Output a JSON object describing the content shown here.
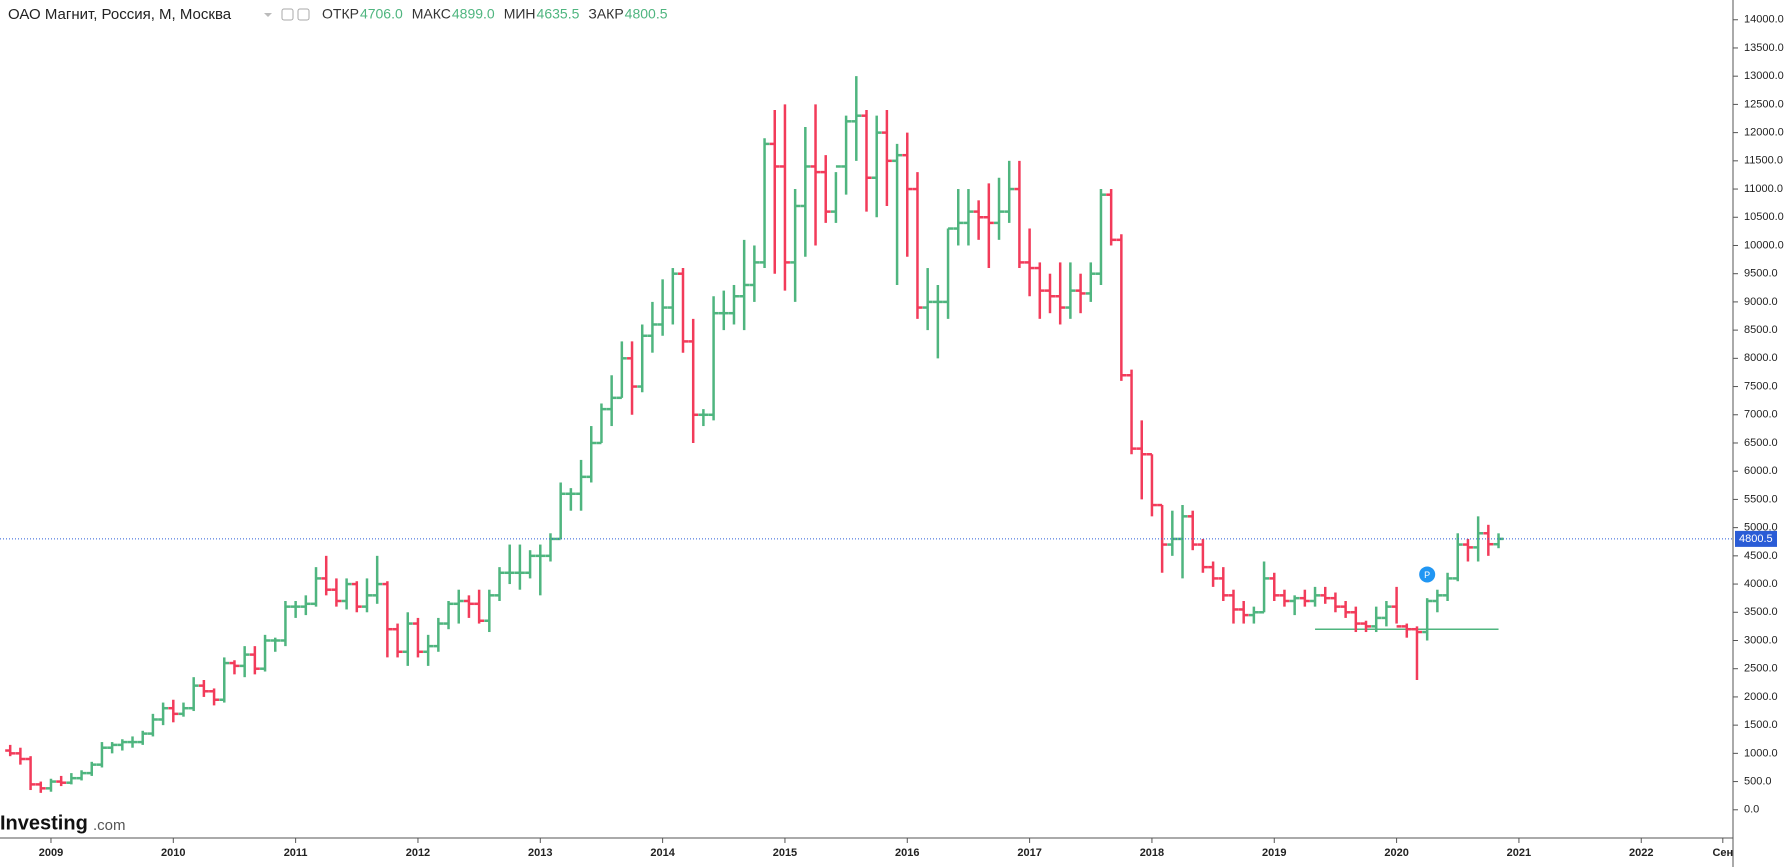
{
  "chart_data": {
    "type": "ohlc",
    "title": "ОАО Магнит, Россия, М, Москва",
    "ohlc_header": [
      {
        "label": "ОТКР",
        "value": "4706.0"
      },
      {
        "label": "МАКС",
        "value": "4899.0"
      },
      {
        "label": "МИН",
        "value": "4635.5"
      },
      {
        "label": "ЗАКР",
        "value": "4800.5"
      }
    ],
    "logo": {
      "name": "Investing",
      "suffix": ".com"
    },
    "up_color": "#4fb57f",
    "down_color": "#f23b5a",
    "x": [
      "2008-09",
      "2008-10",
      "2008-11",
      "2008-12",
      "2009-01",
      "2009-02",
      "2009-03",
      "2009-04",
      "2009-05",
      "2009-06",
      "2009-07",
      "2009-08",
      "2009-09",
      "2009-10",
      "2009-11",
      "2009-12",
      "2010-01",
      "2010-02",
      "2010-03",
      "2010-04",
      "2010-05",
      "2010-06",
      "2010-07",
      "2010-08",
      "2010-09",
      "2010-10",
      "2010-11",
      "2010-12",
      "2011-01",
      "2011-02",
      "2011-03",
      "2011-04",
      "2011-05",
      "2011-06",
      "2011-07",
      "2011-08",
      "2011-09",
      "2011-10",
      "2011-11",
      "2011-12",
      "2012-01",
      "2012-02",
      "2012-03",
      "2012-04",
      "2012-05",
      "2012-06",
      "2012-07",
      "2012-08",
      "2012-09",
      "2012-10",
      "2012-11",
      "2012-12",
      "2013-01",
      "2013-02",
      "2013-03",
      "2013-04",
      "2013-05",
      "2013-06",
      "2013-07",
      "2013-08",
      "2013-09",
      "2013-10",
      "2013-11",
      "2013-12",
      "2014-01",
      "2014-02",
      "2014-03",
      "2014-04",
      "2014-05",
      "2014-06",
      "2014-07",
      "2014-08",
      "2014-09",
      "2014-10",
      "2014-11",
      "2014-12",
      "2015-01",
      "2015-02",
      "2015-03",
      "2015-04",
      "2015-05",
      "2015-06",
      "2015-07",
      "2015-08",
      "2015-09",
      "2015-10",
      "2015-11",
      "2015-12",
      "2016-01",
      "2016-02",
      "2016-03",
      "2016-04",
      "2016-05",
      "2016-06",
      "2016-07",
      "2016-08",
      "2016-09",
      "2016-10",
      "2016-11",
      "2016-12",
      "2017-01",
      "2017-02",
      "2017-03",
      "2017-04",
      "2017-05",
      "2017-06",
      "2017-07",
      "2017-08",
      "2017-09",
      "2017-10",
      "2017-11",
      "2017-12",
      "2018-01",
      "2018-02",
      "2018-03",
      "2018-04",
      "2018-05",
      "2018-06",
      "2018-07",
      "2018-08",
      "2018-09",
      "2018-10",
      "2018-11",
      "2018-12",
      "2019-01",
      "2019-02",
      "2019-03",
      "2019-04",
      "2019-05",
      "2019-06",
      "2019-07",
      "2019-08",
      "2019-09",
      "2019-10",
      "2019-11",
      "2019-12",
      "2020-01",
      "2020-02",
      "2020-03",
      "2020-04",
      "2020-05",
      "2020-06",
      "2020-07",
      "2020-08",
      "2020-09",
      "2020-10",
      "2020-11"
    ],
    "open": [
      1050,
      1000,
      900,
      450,
      380,
      500,
      480,
      560,
      650,
      800,
      1100,
      1150,
      1200,
      1200,
      1350,
      1600,
      1800,
      1700,
      1800,
      2200,
      2100,
      1950,
      2600,
      2550,
      2750,
      2500,
      3000,
      3000,
      3600,
      3600,
      3650,
      4100,
      3900,
      3700,
      4000,
      3600,
      3800,
      4000,
      3200,
      2800,
      3300,
      2800,
      2900,
      3300,
      3650,
      3700,
      3650,
      3350,
      3800,
      4200,
      4200,
      4200,
      4500,
      4500,
      4800,
      5600,
      5600,
      5900,
      6500,
      7100,
      7300,
      8000,
      7500,
      8400,
      8600,
      8900,
      9500,
      8300,
      7000,
      7000,
      8800,
      8800,
      9100,
      9300,
      9700,
      11800,
      11400,
      9700,
      10700,
      11400,
      11300,
      10600,
      11400,
      12200,
      12300,
      11200,
      12000,
      11500,
      11600,
      11000,
      8900,
      9000,
      9000,
      10300,
      10400,
      10600,
      10500,
      10400,
      10600,
      11000,
      9700,
      9600,
      9200,
      9100,
      8900,
      9200,
      9150,
      9500,
      10900,
      10100,
      7700,
      6400,
      6300,
      5400,
      4700,
      4800,
      5200,
      4700,
      4300,
      4100,
      3800,
      3550,
      3450,
      3500,
      4100,
      3800,
      3700,
      3750,
      3700,
      3800,
      3750,
      3600,
      3500,
      3300,
      3250,
      3400,
      3600,
      3250,
      3200,
      3150,
      3700,
      3800,
      4100,
      4700,
      4650,
      4900,
      4706
    ],
    "high": [
      1150,
      1100,
      950,
      500,
      550,
      600,
      650,
      700,
      850,
      1200,
      1200,
      1250,
      1300,
      1400,
      1700,
      1900,
      1950,
      1900,
      2350,
      2300,
      2150,
      2700,
      2650,
      2900,
      2900,
      3100,
      3050,
      3700,
      3700,
      3800,
      4300,
      4500,
      4100,
      4100,
      4050,
      4100,
      4500,
      4050,
      3300,
      3500,
      3400,
      3100,
      3400,
      3700,
      3900,
      3800,
      3900,
      3900,
      4300,
      4700,
      4700,
      4600,
      4700,
      4900,
      5800,
      5700,
      6200,
      6800,
      7200,
      7700,
      8300,
      8300,
      8600,
      9000,
      9400,
      9600,
      9600,
      8700,
      7100,
      9100,
      9200,
      9300,
      10100,
      10000,
      11900,
      12400,
      12500,
      11000,
      12100,
      12500,
      11600,
      11300,
      12300,
      13000,
      12400,
      12300,
      12400,
      11800,
      12000,
      11300,
      9600,
      9300,
      10300,
      11000,
      11000,
      10800,
      11100,
      11200,
      11500,
      11500,
      10300,
      9700,
      9500,
      9700,
      9700,
      9500,
      9700,
      11000,
      11000,
      10200,
      7800,
      6900,
      6300,
      5400,
      5300,
      5400,
      5300,
      4800,
      4400,
      4300,
      3900,
      3700,
      3600,
      4400,
      4200,
      3900,
      3800,
      3900,
      3950,
      3950,
      3850,
      3700,
      3600,
      3350,
      3600,
      3700,
      3950,
      3300,
      3250,
      3750,
      3900,
      4200,
      4900,
      4800,
      5200,
      5050,
      4899
    ],
    "low": [
      950,
      800,
      350,
      300,
      320,
      420,
      450,
      520,
      600,
      750,
      1000,
      1050,
      1100,
      1150,
      1300,
      1500,
      1550,
      1650,
      1750,
      2000,
      1850,
      1900,
      2400,
      2350,
      2400,
      2450,
      2800,
      2900,
      3400,
      3450,
      3600,
      3800,
      3600,
      3550,
      3500,
      3500,
      3650,
      2700,
      2700,
      2550,
      2700,
      2550,
      2800,
      3200,
      3300,
      3400,
      3300,
      3150,
      3700,
      4000,
      3900,
      4100,
      3800,
      4400,
      4800,
      5300,
      5300,
      5800,
      6500,
      6800,
      7300,
      7000,
      7400,
      8100,
      8400,
      8600,
      8100,
      6500,
      6800,
      6900,
      8500,
      8600,
      8500,
      9000,
      9600,
      9500,
      9200,
      9000,
      9800,
      10000,
      10400,
      10400,
      10900,
      11500,
      10600,
      10500,
      10700,
      9300,
      9800,
      8700,
      8500,
      8000,
      8700,
      10000,
      10000,
      10100,
      9600,
      10100,
      10400,
      9600,
      9100,
      8700,
      8800,
      8600,
      8700,
      8800,
      9000,
      9300,
      10000,
      7600,
      6300,
      5500,
      5200,
      4200,
      4500,
      4100,
      4600,
      4200,
      3950,
      3700,
      3300,
      3300,
      3300,
      3500,
      3700,
      3600,
      3450,
      3600,
      3600,
      3650,
      3500,
      3400,
      3150,
      3150,
      3150,
      3250,
      3300,
      3050,
      2300,
      3000,
      3500,
      3700,
      4050,
      4400,
      4400,
      4500,
      4635.5
    ],
    "close": [
      1000,
      900,
      450,
      380,
      500,
      480,
      560,
      650,
      800,
      1100,
      1150,
      1200,
      1200,
      1350,
      1600,
      1800,
      1700,
      1800,
      2200,
      2100,
      1950,
      2600,
      2550,
      2750,
      2500,
      3000,
      3000,
      3600,
      3600,
      3650,
      4100,
      3900,
      3700,
      4000,
      3600,
      3800,
      4000,
      3200,
      2800,
      3300,
      2800,
      2900,
      3300,
      3650,
      3700,
      3650,
      3350,
      3800,
      4200,
      4200,
      4200,
      4500,
      4500,
      4800,
      5600,
      5600,
      5900,
      6500,
      7100,
      7300,
      8000,
      7500,
      8400,
      8600,
      8900,
      9500,
      8300,
      7000,
      7000,
      8800,
      8800,
      9100,
      9300,
      9700,
      11800,
      11400,
      9700,
      10700,
      11400,
      11300,
      10600,
      11400,
      12200,
      12300,
      11200,
      12000,
      11500,
      11600,
      11000,
      8900,
      9000,
      9000,
      10300,
      10400,
      10600,
      10500,
      10400,
      10600,
      11000,
      9700,
      9600,
      9200,
      9100,
      8900,
      9200,
      9150,
      9500,
      10900,
      10100,
      7700,
      6400,
      6300,
      5400,
      4700,
      4800,
      5200,
      4700,
      4300,
      4100,
      3800,
      3550,
      3450,
      3500,
      4100,
      3800,
      3700,
      3750,
      3700,
      3800,
      3750,
      3600,
      3500,
      3300,
      3250,
      3400,
      3600,
      3250,
      3200,
      3150,
      3700,
      3800,
      4100,
      4700,
      4650,
      4900,
      4706,
      4800.5
    ],
    "xlim": [
      "2008-08",
      "2022-10"
    ],
    "xticks": [
      {
        "value": "2009-01",
        "label": "2009"
      },
      {
        "value": "2010-01",
        "label": "2010"
      },
      {
        "value": "2011-01",
        "label": "2011"
      },
      {
        "value": "2012-01",
        "label": "2012"
      },
      {
        "value": "2013-01",
        "label": "2013"
      },
      {
        "value": "2014-01",
        "label": "2014"
      },
      {
        "value": "2015-01",
        "label": "2015"
      },
      {
        "value": "2016-01",
        "label": "2016"
      },
      {
        "value": "2017-01",
        "label": "2017"
      },
      {
        "value": "2018-01",
        "label": "2018"
      },
      {
        "value": "2019-01",
        "label": "2019"
      },
      {
        "value": "2020-01",
        "label": "2020"
      },
      {
        "value": "2021-01",
        "label": "2021"
      },
      {
        "value": "2022-01",
        "label": "2022"
      },
      {
        "value": "2022-09",
        "label": "Сен"
      }
    ],
    "ylim": [
      -500,
      14350
    ],
    "yticks": [
      {
        "value": 0,
        "label": "0.0"
      },
      {
        "value": 500,
        "label": "500.0"
      },
      {
        "value": 1000,
        "label": "1000.0"
      },
      {
        "value": 1500,
        "label": "1500.0"
      },
      {
        "value": 2000,
        "label": "2000.0"
      },
      {
        "value": 2500,
        "label": "2500.0"
      },
      {
        "value": 3000,
        "label": "3000.0"
      },
      {
        "value": 3500,
        "label": "3500.0"
      },
      {
        "value": 4000,
        "label": "4000.0"
      },
      {
        "value": 4500,
        "label": "4500.0"
      },
      {
        "value": 5000,
        "label": "5000.0"
      },
      {
        "value": 5500,
        "label": "5500.0"
      },
      {
        "value": 6000,
        "label": "6000.0"
      },
      {
        "value": 6500,
        "label": "6500.0"
      },
      {
        "value": 7000,
        "label": "7000.0"
      },
      {
        "value": 7500,
        "label": "7500.0"
      },
      {
        "value": 8000,
        "label": "8000.0"
      },
      {
        "value": 8500,
        "label": "8500.0"
      },
      {
        "value": 9000,
        "label": "9000.0"
      },
      {
        "value": 9500,
        "label": "9500.0"
      },
      {
        "value": 10000,
        "label": "10000.0"
      },
      {
        "value": 10500,
        "label": "10500.0"
      },
      {
        "value": 11000,
        "label": "11000.0"
      },
      {
        "value": 11500,
        "label": "11500.0"
      },
      {
        "value": 12000,
        "label": "12000.0"
      },
      {
        "value": 12500,
        "label": "12500.0"
      },
      {
        "value": 13000,
        "label": "13000.0"
      },
      {
        "value": 13500,
        "label": "13500.0"
      },
      {
        "value": 14000,
        "label": "14000.0"
      }
    ],
    "price_line_color": "#2a5cd6",
    "level_line": {
      "value": 3200,
      "from": "2019-05",
      "to": "2020-11",
      "color": "#4fb57f"
    },
    "event_marker": {
      "label": "P",
      "x": "2020-04",
      "y": 4170,
      "color": "#2196f3"
    }
  }
}
